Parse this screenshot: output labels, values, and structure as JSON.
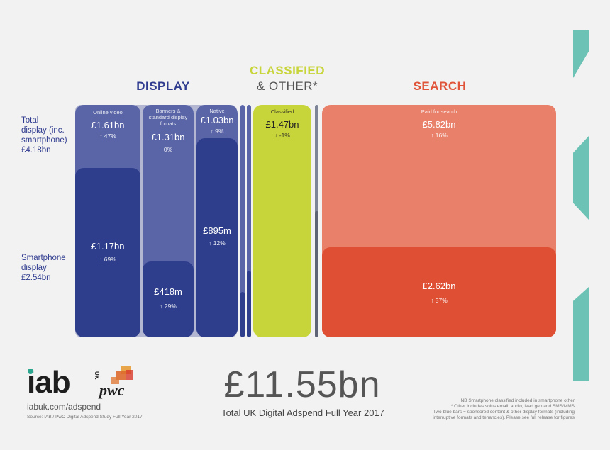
{
  "headers": {
    "display": "DISPLAY",
    "classified_line1": "CLASSIFIED",
    "classified_line2": "& OTHER*",
    "search": "SEARCH"
  },
  "row_labels": {
    "total": [
      "Total",
      "display (inc.",
      "smartphone)",
      "£4.18bn"
    ],
    "smartphone": [
      "Smartphone",
      "display",
      "£2.54bn"
    ]
  },
  "colors": {
    "display_total": "#5a65a8",
    "display_smartphone": "#2e3e8c",
    "classified": "#c8d53a",
    "search_total": "#e8806a",
    "search_smartphone": "#de4f34",
    "accent": "#6cc3b5",
    "header_display": "#2f3b8f",
    "header_classified": "#c8d53a",
    "header_search": "#e0553a"
  },
  "chart_data": {
    "type": "mosaic",
    "title": "Total UK Digital Adspend Full Year 2017",
    "total": "£11.55bn",
    "groups": [
      {
        "name": "DISPLAY",
        "segments": [
          {
            "label": "Online video",
            "total": "£1.61bn",
            "total_change": "↑ 47%",
            "smartphone": "£1.17bn",
            "smartphone_change": "↑ 69%",
            "total_value": 1.61,
            "smartphone_value": 1.17
          },
          {
            "label": "Banners & standard display fomats",
            "total": "£1.31bn",
            "total_change": "0%",
            "smartphone": "£418m",
            "smartphone_change": "↑ 29%",
            "total_value": 1.31,
            "smartphone_value": 0.418
          },
          {
            "label": "Native",
            "total": "£1.03bn",
            "total_change": "↑ 9%",
            "smartphone": "£895m",
            "smartphone_change": "↑ 12%",
            "total_value": 1.03,
            "smartphone_value": 0.895
          }
        ]
      },
      {
        "name": "CLASSIFIED & OTHER*",
        "segments": [
          {
            "label": "Classified",
            "total": "£1.47bn",
            "total_change": "↓ -1%",
            "total_value": 1.47
          }
        ]
      },
      {
        "name": "SEARCH",
        "segments": [
          {
            "label": "Paid for search",
            "total": "£5.82bn",
            "total_change": "↑ 16%",
            "smartphone": "£2.62bn",
            "smartphone_change": "↑ 37%",
            "total_value": 5.82,
            "smartphone_value": 2.62
          }
        ]
      }
    ]
  },
  "footer": {
    "logo_iab": "iab",
    "logo_uk": "UK",
    "logo_pwc": "pwc",
    "url": "iabuk.com/adspend",
    "source": "Source: IAB / PwC Digital Adspend Study Full Year 2017",
    "big_total": "£11.55bn",
    "subtitle": "Total UK Digital Adspend Full Year 2017",
    "notes": [
      "NB Smartphone classified included in smartphone other",
      "* Other includes solus email, audio, lead gen and SMS/MMS",
      "Two blue bars = sponsored content & other display formats (including",
      "interruptive formats and tenancies). Please see full release for figures"
    ]
  }
}
